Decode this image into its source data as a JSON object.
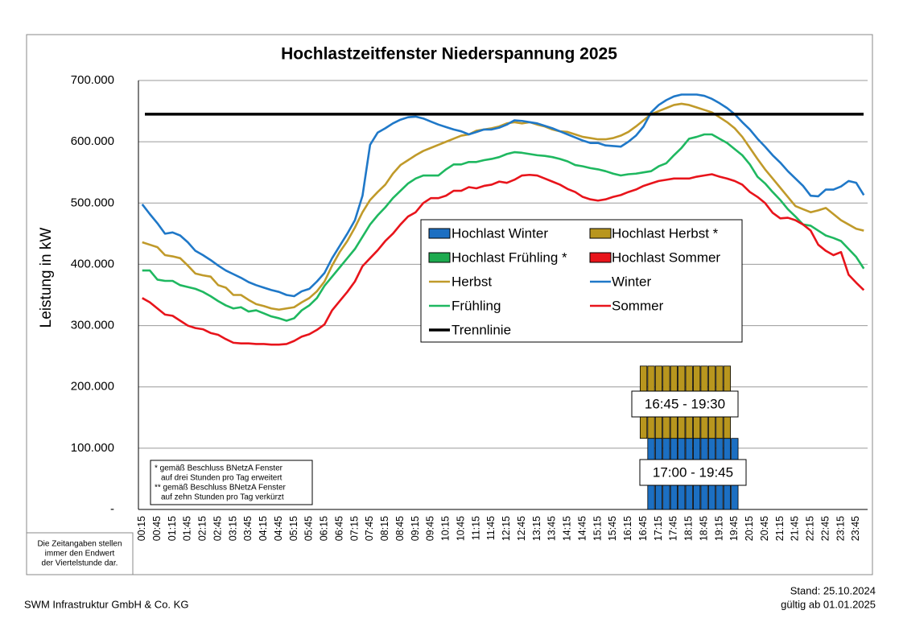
{
  "chart_data": {
    "type": "line",
    "title": "Hochlastzeitfenster Niederspannung 2025",
    "y_label": "Leistung in kW",
    "categories": [
      "00:15",
      null,
      "00:45",
      null,
      "01:15",
      null,
      "01:45",
      null,
      "02:15",
      null,
      "02:45",
      null,
      "03:15",
      null,
      "03:45",
      null,
      "04:15",
      null,
      "04:45",
      null,
      "05:15",
      null,
      "05:45",
      null,
      "06:15",
      null,
      "06:45",
      null,
      "07:15",
      null,
      "07:45",
      null,
      "08:15",
      null,
      "08:45",
      null,
      "09:15",
      null,
      "09:45",
      null,
      "10:15",
      null,
      "10:45",
      null,
      "11:15",
      null,
      "11:45",
      null,
      "12:15",
      null,
      "12:45",
      null,
      "13:15",
      null,
      "13:45",
      null,
      "14:15",
      null,
      "14:45",
      null,
      "15:15",
      null,
      "15:45",
      null,
      "16:15",
      null,
      "16:45",
      null,
      "17:15",
      null,
      "17:45",
      null,
      "18:15",
      null,
      "18:45",
      null,
      "19:15",
      null,
      "19:45",
      null,
      "20:15",
      null,
      "20:45",
      null,
      "21:15",
      null,
      "21:45",
      null,
      "22:15",
      null,
      "22:45",
      null,
      "23:15",
      null,
      "23:45",
      null
    ],
    "ylim": [
      0,
      700000
    ],
    "yticks": [
      {
        "value": 0,
        "label": "-"
      },
      {
        "value": 100000,
        "label": "100.000"
      },
      {
        "value": 200000,
        "label": "200.000"
      },
      {
        "value": 300000,
        "label": "300.000"
      },
      {
        "value": 400000,
        "label": "400.000"
      },
      {
        "value": 500000,
        "label": "500.000"
      },
      {
        "value": 600000,
        "label": "600.000"
      },
      {
        "value": 700000,
        "label": "700.000"
      }
    ],
    "grid": true,
    "bars": [
      {
        "name": "Hochlast Winter",
        "color": "#1c6fc2",
        "values": [
          null,
          null,
          null,
          null,
          null,
          null,
          null,
          null,
          null,
          null,
          null,
          null,
          null,
          null,
          null,
          null,
          null,
          null,
          null,
          null,
          null,
          null,
          null,
          null,
          null,
          null,
          null,
          null,
          null,
          null,
          null,
          null,
          null,
          null,
          null,
          null,
          null,
          null,
          null,
          null,
          null,
          null,
          null,
          null,
          null,
          null,
          null,
          null,
          null,
          null,
          null,
          null,
          null,
          null,
          null,
          null,
          null,
          null,
          null,
          null,
          null,
          null,
          null,
          null,
          null,
          null,
          null,
          116000,
          116000,
          116000,
          116000,
          116000,
          116000,
          116000,
          116000,
          116000,
          116000,
          116000,
          116000,
          null,
          null,
          null,
          null,
          null,
          null,
          null,
          null,
          null,
          null,
          null,
          null,
          null,
          null,
          null,
          null,
          null
        ]
      },
      {
        "name": "Hochlast Herbst *",
        "color": "#b8961e",
        "base": 116000,
        "values": [
          null,
          null,
          null,
          null,
          null,
          null,
          null,
          null,
          null,
          null,
          null,
          null,
          null,
          null,
          null,
          null,
          null,
          null,
          null,
          null,
          null,
          null,
          null,
          null,
          null,
          null,
          null,
          null,
          null,
          null,
          null,
          null,
          null,
          null,
          null,
          null,
          null,
          null,
          null,
          null,
          null,
          null,
          null,
          null,
          null,
          null,
          null,
          null,
          null,
          null,
          null,
          null,
          null,
          null,
          null,
          null,
          null,
          null,
          null,
          null,
          null,
          null,
          null,
          null,
          null,
          null,
          234000,
          234000,
          234000,
          234000,
          234000,
          234000,
          234000,
          234000,
          234000,
          234000,
          234000,
          234000,
          null,
          null,
          null,
          null,
          null,
          null,
          null,
          null,
          null,
          null,
          null,
          null,
          null,
          null,
          null,
          null,
          null,
          null
        ]
      },
      {
        "name": "Hochlast Frühling *",
        "color": "#1daa4f"
      },
      {
        "name": "Hochlast Sommer",
        "color": "#e8141b"
      }
    ],
    "series": [
      {
        "name": "Herbst",
        "color": "#c09a2a",
        "values": [
          436000,
          432000,
          428000,
          415000,
          413000,
          410000,
          398000,
          385000,
          382000,
          380000,
          366000,
          362000,
          350000,
          350000,
          342000,
          335000,
          332000,
          328000,
          326000,
          328000,
          330000,
          338000,
          345000,
          356000,
          372000,
          398000,
          420000,
          438000,
          460000,
          485000,
          505000,
          518000,
          530000,
          548000,
          562000,
          570000,
          578000,
          585000,
          590000,
          595000,
          600000,
          605000,
          610000,
          612000,
          618000,
          620000,
          622000,
          625000,
          630000,
          632000,
          630000,
          632000,
          628000,
          625000,
          620000,
          617000,
          616000,
          612000,
          608000,
          606000,
          604000,
          604000,
          606000,
          610000,
          616000,
          625000,
          635000,
          645000,
          650000,
          655000,
          660000,
          662000,
          660000,
          656000,
          652000,
          648000,
          640000,
          632000,
          622000,
          608000,
          590000,
          572000,
          555000,
          540000,
          525000,
          510000,
          495000,
          490000,
          485000,
          488000,
          492000,
          482000,
          472000,
          465000,
          458000,
          455000
        ]
      },
      {
        "name": "Winter",
        "color": "#1f78c8",
        "values": [
          498000,
          482000,
          467000,
          450000,
          452000,
          447000,
          436000,
          422000,
          415000,
          407000,
          398000,
          390000,
          384000,
          378000,
          371000,
          366000,
          362000,
          358000,
          355000,
          350000,
          348000,
          356000,
          360000,
          372000,
          386000,
          410000,
          430000,
          450000,
          472000,
          512000,
          595000,
          615000,
          622000,
          630000,
          636000,
          640000,
          641000,
          638000,
          633000,
          628000,
          624000,
          620000,
          617000,
          612000,
          616000,
          620000,
          620000,
          623000,
          628000,
          635000,
          634000,
          632000,
          630000,
          626000,
          622000,
          617000,
          612000,
          607000,
          602000,
          598000,
          598000,
          594000,
          593000,
          592000,
          600000,
          610000,
          625000,
          648000,
          660000,
          668000,
          674000,
          677000,
          677000,
          677000,
          675000,
          670000,
          663000,
          655000,
          645000,
          632000,
          620000,
          605000,
          592000,
          578000,
          566000,
          552000,
          540000,
          528000,
          512000,
          511000,
          522000,
          522000,
          527000,
          536000,
          533000,
          513000
        ]
      },
      {
        "name": "Frühling",
        "color": "#1fb860",
        "values": [
          390000,
          390000,
          375000,
          373000,
          373000,
          366000,
          363000,
          360000,
          355000,
          348000,
          340000,
          333000,
          328000,
          330000,
          323000,
          325000,
          320000,
          315000,
          312000,
          308000,
          312000,
          325000,
          333000,
          345000,
          365000,
          380000,
          395000,
          410000,
          425000,
          445000,
          465000,
          480000,
          493000,
          508000,
          520000,
          532000,
          540000,
          545000,
          545000,
          545000,
          555000,
          563000,
          563000,
          567000,
          567000,
          570000,
          572000,
          575000,
          580000,
          583000,
          582000,
          580000,
          578000,
          577000,
          575000,
          572000,
          568000,
          562000,
          560000,
          557000,
          555000,
          552000,
          548000,
          545000,
          547000,
          548000,
          550000,
          552000,
          560000,
          565000,
          578000,
          590000,
          605000,
          608000,
          612000,
          612000,
          605000,
          598000,
          588000,
          578000,
          563000,
          543000,
          532000,
          518000,
          505000,
          490000,
          478000,
          465000,
          463000,
          455000,
          447000,
          443000,
          438000,
          425000,
          412000,
          393000
        ]
      },
      {
        "name": "Sommer",
        "color": "#e8141b",
        "values": [
          345000,
          338000,
          328000,
          318000,
          316000,
          308000,
          300000,
          296000,
          294000,
          288000,
          285000,
          278000,
          272000,
          271000,
          271000,
          270000,
          270000,
          269000,
          269000,
          270000,
          275000,
          282000,
          286000,
          293000,
          302000,
          325000,
          340000,
          355000,
          372000,
          397000,
          410000,
          423000,
          438000,
          450000,
          465000,
          478000,
          485000,
          500000,
          508000,
          508000,
          512000,
          520000,
          520000,
          526000,
          524000,
          528000,
          530000,
          535000,
          533000,
          538000,
          545000,
          546000,
          545000,
          540000,
          535000,
          530000,
          523000,
          518000,
          510000,
          506000,
          504000,
          506000,
          510000,
          513000,
          518000,
          522000,
          528000,
          532000,
          536000,
          538000,
          540000,
          540000,
          540000,
          543000,
          545000,
          547000,
          543000,
          540000,
          536000,
          530000,
          518000,
          510000,
          500000,
          484000,
          475000,
          476000,
          472000,
          465000,
          455000,
          432000,
          422000,
          415000,
          420000,
          383000,
          370000,
          358000
        ]
      }
    ],
    "threshold": {
      "name": "Trennlinie",
      "color": "#000000",
      "value": 645000
    },
    "annotations": [
      "16:45 - 19:30",
      "17:00 - 19:45"
    ],
    "footnotes": [
      "* gemäß Beschluss BNetzA Fenster",
      "auf drei Stunden pro Tag erweitert",
      "** gemäß Beschluss BNetzA Fenster",
      "auf zehn Stunden pro Tag verkürzt"
    ],
    "note": [
      "Die Zeitangaben stellen",
      "immer den Endwert",
      "der Viertelstunde dar."
    ]
  },
  "footer": {
    "company": "SWM Infrastruktur GmbH & Co. KG",
    "stand": "Stand: 25.10.2024",
    "valid": "gültig ab 01.01.2025"
  }
}
